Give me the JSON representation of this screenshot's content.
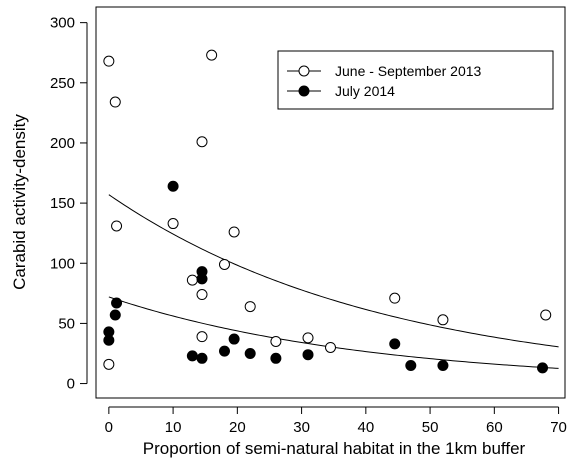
{
  "chart_data": {
    "type": "scatter",
    "xlabel": "Proportion of semi-natural habitat in the 1km buffer",
    "ylabel": "Carabid activity-density",
    "xlim": [
      -2,
      71
    ],
    "ylim": [
      -12,
      313
    ],
    "x_ticks": [
      0,
      10,
      20,
      30,
      40,
      50,
      60,
      70
    ],
    "y_ticks": [
      0,
      50,
      100,
      150,
      200,
      250,
      300
    ],
    "grid": false,
    "legend_position": "top-right",
    "series": [
      {
        "name": "June - September 2013",
        "marker": "open-circle",
        "points": [
          [
            0,
            268
          ],
          [
            1,
            234
          ],
          [
            1.2,
            131
          ],
          [
            16,
            273
          ],
          [
            14.5,
            201
          ],
          [
            10,
            133
          ],
          [
            19.5,
            126
          ],
          [
            13,
            86
          ],
          [
            18,
            99
          ],
          [
            14.5,
            74
          ],
          [
            22,
            64
          ],
          [
            14.5,
            39
          ],
          [
            26,
            35
          ],
          [
            31,
            38
          ],
          [
            34.5,
            30
          ],
          [
            44.5,
            71
          ],
          [
            52,
            53
          ],
          [
            68,
            57
          ],
          [
            0,
            16
          ]
        ],
        "fit_curve": {
          "model": "exponential",
          "a": 157,
          "b": -0.0234
        }
      },
      {
        "name": "July 2014",
        "marker": "filled-circle",
        "points": [
          [
            10,
            164
          ],
          [
            14.5,
            93
          ],
          [
            14.5,
            87
          ],
          [
            1.2,
            67
          ],
          [
            1,
            57
          ],
          [
            0,
            43
          ],
          [
            0,
            36
          ],
          [
            13,
            23
          ],
          [
            14.5,
            21
          ],
          [
            18,
            27
          ],
          [
            19.5,
            37
          ],
          [
            22,
            25
          ],
          [
            26,
            21
          ],
          [
            31,
            24
          ],
          [
            44.5,
            33
          ],
          [
            47,
            15
          ],
          [
            52,
            15
          ],
          [
            67.5,
            13
          ]
        ],
        "fit_curve": {
          "model": "exponential",
          "a": 72,
          "b": -0.0249
        }
      }
    ]
  }
}
